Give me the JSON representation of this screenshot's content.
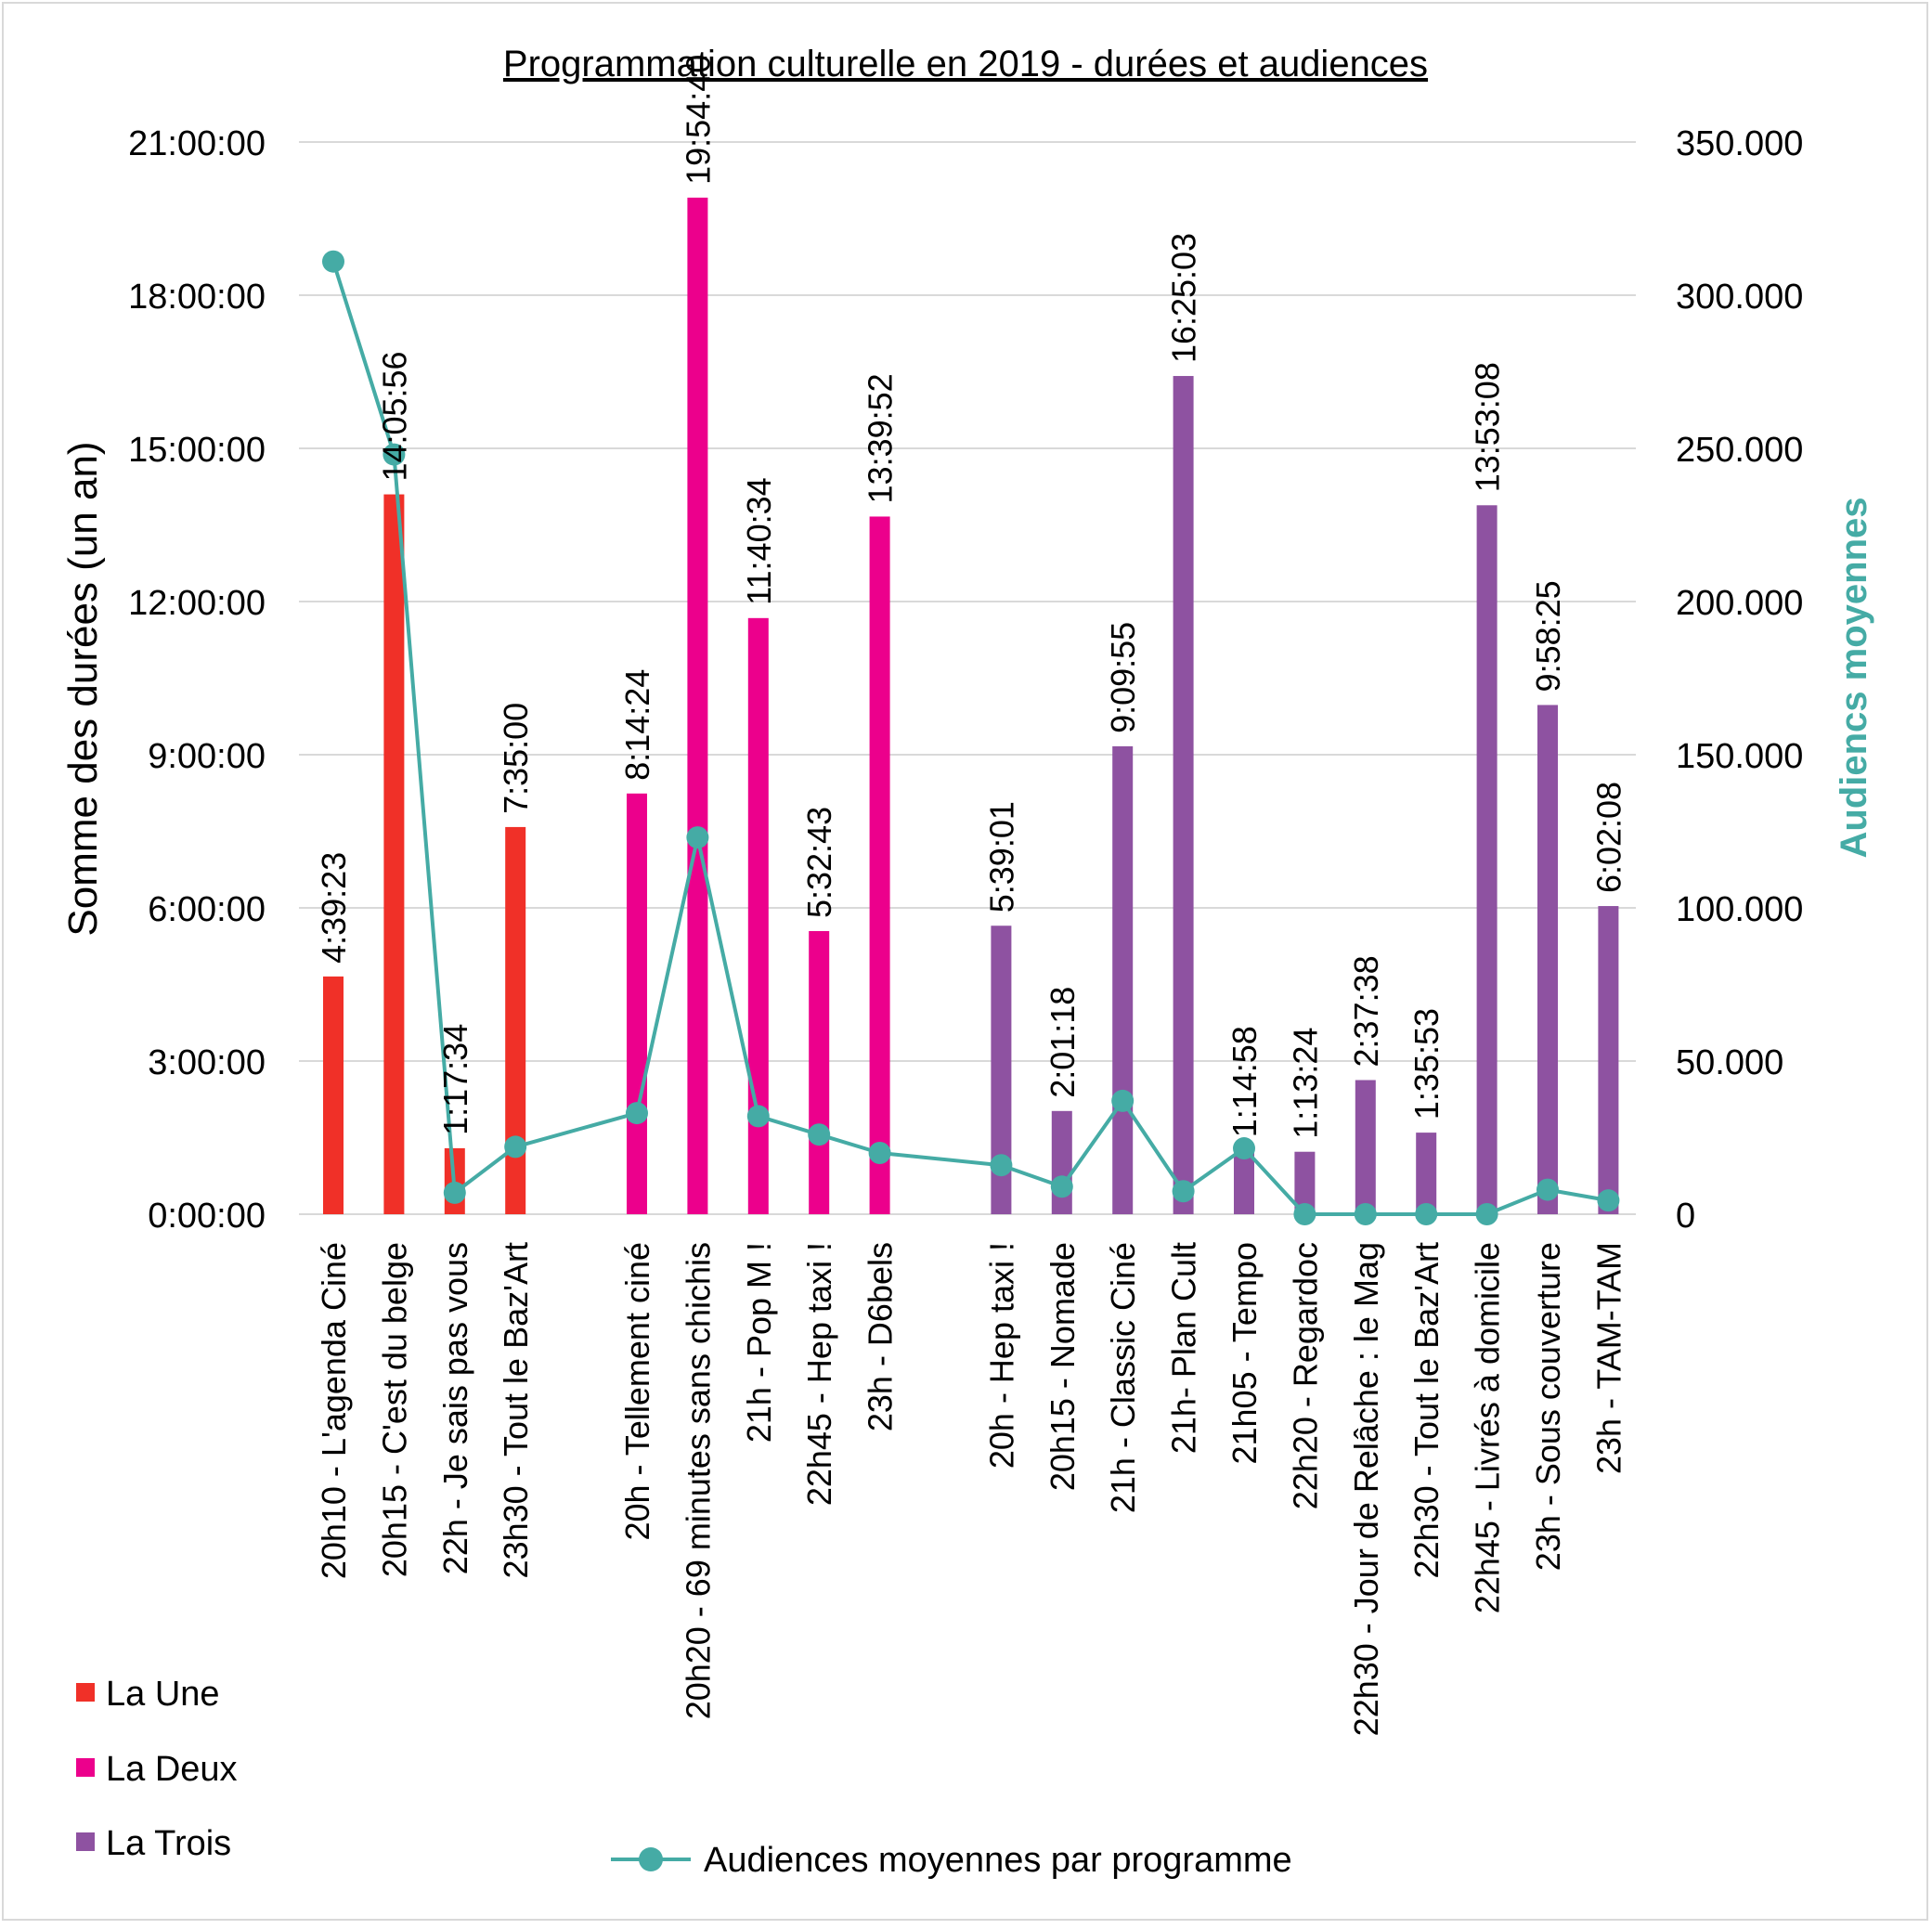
{
  "chart_data": {
    "type": "bar",
    "title": "Programmation culturelle en 2019 - durées et audiences",
    "ylabel": "Somme des durées (un an)",
    "y2label": "Audiencs moyennes",
    "ylim": [
      0,
      21
    ],
    "y_ticks": [
      "0:00:00",
      "3:00:00",
      "6:00:00",
      "9:00:00",
      "12:00:00",
      "15:00:00",
      "18:00:00",
      "21:00:00"
    ],
    "y2lim": [
      0,
      350000
    ],
    "y2_ticks": [
      "0",
      "50.000",
      "100.000",
      "150.000",
      "200.000",
      "250.000",
      "300.000",
      "350.000"
    ],
    "grid": true,
    "legend_position": "bottom-left",
    "colors": {
      "la_une": "#f03028",
      "la_deux": "#ec008c",
      "la_trois": "#8e52a1",
      "audience": "#45aba5",
      "grid": "#d9d9d9"
    },
    "groups": [
      {
        "name": "La Une",
        "color": "#f03028",
        "programs": [
          {
            "label": "20h10 - L'agenda Ciné",
            "duration": "4:39:23",
            "audience": 311000
          },
          {
            "label": "20h15 - C'est du belge",
            "duration": "14:05:56",
            "audience": 248000
          },
          {
            "label": "22h - Je sais pas vous",
            "duration": "1:17:34",
            "audience": 7000
          },
          {
            "label": "23h30 - Tout le Baz'Art",
            "duration": "7:35:00",
            "audience": 22000
          }
        ]
      },
      {
        "name": "La Deux",
        "color": "#ec008c",
        "programs": [
          {
            "label": "20h - Tellement ciné",
            "duration": "8:14:24",
            "audience": 33000
          },
          {
            "label": "20h20 - 69 minutes sans chichis",
            "duration": "19:54:40",
            "audience": 123000
          },
          {
            "label": "21h - Pop M !",
            "duration": "11:40:34",
            "audience": 32000
          },
          {
            "label": "22h45 - Hep taxi !",
            "duration": "5:32:43",
            "audience": 26000
          },
          {
            "label": "23h - D6bels",
            "duration": "13:39:52",
            "audience": 20000
          }
        ]
      },
      {
        "name": "La Trois",
        "color": "#8e52a1",
        "programs": [
          {
            "label": "20h - Hep taxi !",
            "duration": "5:39:01",
            "audience": 16000
          },
          {
            "label": "20h15 - Nomade",
            "duration": "2:01:18",
            "audience": 9000
          },
          {
            "label": "21h - Classic Ciné",
            "duration": "9:09:55",
            "audience": 37000
          },
          {
            "label": "21h- Plan Cult",
            "duration": "16:25:03",
            "audience": 7500
          },
          {
            "label": "21h05 - Tempo",
            "duration": "1:14:58",
            "audience": 21500
          },
          {
            "label": "22h20 - Regardoc",
            "duration": "1:13:24",
            "audience": 0
          },
          {
            "label": "22h30 - Jour de Relâche : le Mag",
            "duration": "2:37:38",
            "audience": 0
          },
          {
            "label": "22h30 - Tout le Baz'Art",
            "duration": "1:35:53",
            "audience": 0
          },
          {
            "label": "22h45 - Livrés à domicile",
            "duration": "13:53:08",
            "audience": 0
          },
          {
            "label": "23h - Sous couverture",
            "duration": "9:58:25",
            "audience": 8000
          },
          {
            "label": "23h - TAM-TAM",
            "duration": "6:02:08",
            "audience": 4500
          }
        ]
      }
    ],
    "series": [
      {
        "name": "La Une",
        "kind": "bar"
      },
      {
        "name": "La Deux",
        "kind": "bar"
      },
      {
        "name": "La Trois",
        "kind": "bar"
      },
      {
        "name": "Audiences moyennes par programme",
        "kind": "line",
        "axis": "secondary"
      }
    ]
  }
}
